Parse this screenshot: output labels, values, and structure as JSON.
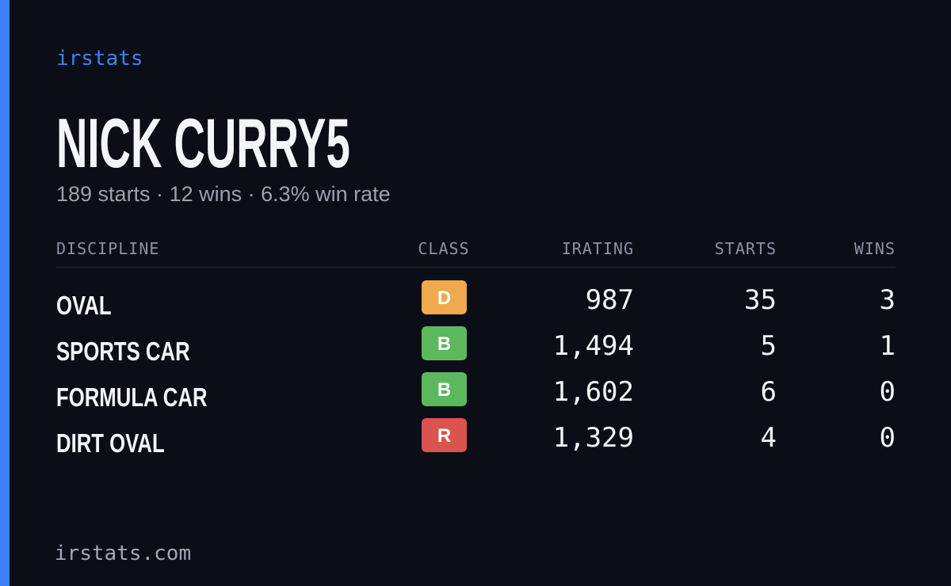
{
  "brand": "irstats",
  "name": "NICK CURRY5",
  "summary": "189 starts · 12 wins · 6.3% win rate",
  "table": {
    "headers": [
      "DISCIPLINE",
      "CLASS",
      "IRATING",
      "STARTS",
      "WINS"
    ],
    "rows": [
      {
        "discipline": "OVAL",
        "class": "D",
        "class_color": "#eeaa4c",
        "irating": "987",
        "starts": "35",
        "wins": "3"
      },
      {
        "discipline": "SPORTS CAR",
        "class": "B",
        "class_color": "#5cb85c",
        "irating": "1,494",
        "starts": "5",
        "wins": "1"
      },
      {
        "discipline": "FORMULA CAR",
        "class": "B",
        "class_color": "#5cb85c",
        "irating": "1,602",
        "starts": "6",
        "wins": "0"
      },
      {
        "discipline": "DIRT OVAL",
        "class": "R",
        "class_color": "#d9534f",
        "irating": "1,329",
        "starts": "4",
        "wins": "0"
      }
    ]
  },
  "footer": "irstats.com"
}
